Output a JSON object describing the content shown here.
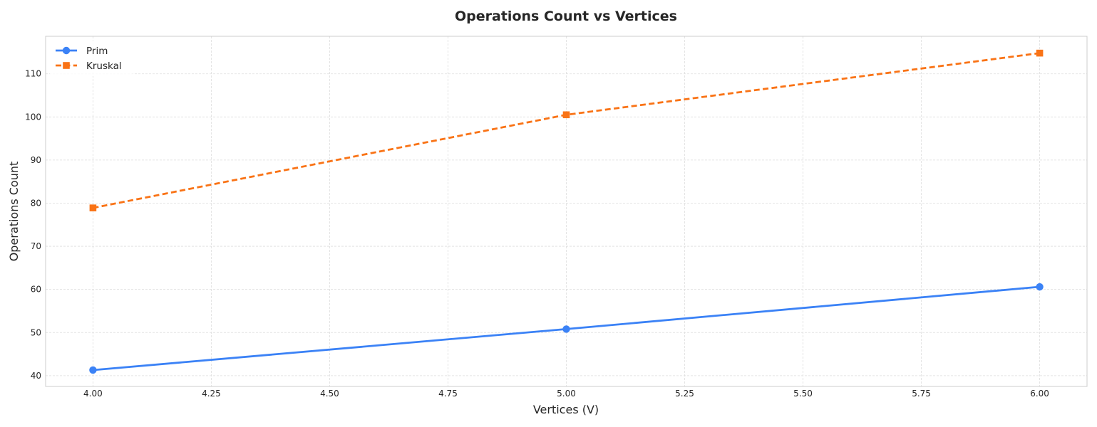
{
  "chart_data": {
    "type": "line",
    "title": "Operations Count vs Vertices",
    "xlabel": "Vertices (V)",
    "ylabel": "Operations Count",
    "x": [
      4,
      5,
      6
    ],
    "xlim": [
      3.9,
      6.1
    ],
    "ylim": [
      37.5,
      118.7
    ],
    "xticks": [
      4.0,
      4.25,
      4.5,
      4.75,
      5.0,
      5.25,
      5.5,
      5.75,
      6.0
    ],
    "xtick_labels": [
      "4.00",
      "4.25",
      "4.50",
      "4.75",
      "5.00",
      "5.25",
      "5.50",
      "5.75",
      "6.00"
    ],
    "yticks": [
      40,
      50,
      60,
      70,
      80,
      90,
      100,
      110
    ],
    "ytick_labels": [
      "40",
      "50",
      "60",
      "70",
      "80",
      "90",
      "100",
      "110"
    ],
    "grid": true,
    "legend_position": "top-left",
    "series": [
      {
        "name": "Prim",
        "values": [
          41.3,
          50.8,
          60.6
        ],
        "color": "#3b82f6",
        "line_style": "solid",
        "marker": "circle"
      },
      {
        "name": "Kruskal",
        "values": [
          78.9,
          100.5,
          114.8
        ],
        "color": "#f97316",
        "line_style": "dashed",
        "marker": "square"
      }
    ]
  }
}
